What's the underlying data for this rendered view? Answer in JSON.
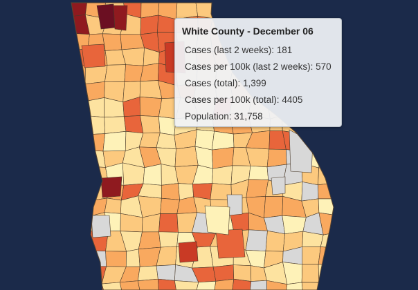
{
  "map": {
    "region": "Georgia",
    "scale_colors": [
      "#fef2b8",
      "#fde3a0",
      "#fcc97e",
      "#f9a95f",
      "#f48750",
      "#e8653b",
      "#c93a25",
      "#8f1a1f",
      "#6b0f22"
    ],
    "no_data_color": "#d8d8d8",
    "background_color": "#1b2a4a"
  },
  "tooltip": {
    "title": "White County - December 06",
    "rows": [
      "Cases (last 2 weeks): 181",
      "Cases per 100k (last 2 weeks): 570",
      "Cases (total): 1,399",
      "Cases per 100k (total): 4405",
      "Population: 31,758"
    ]
  }
}
